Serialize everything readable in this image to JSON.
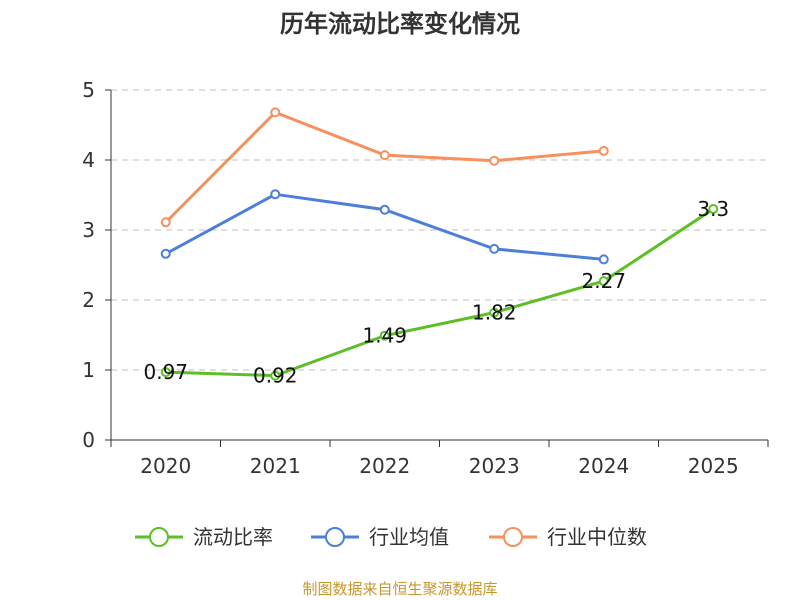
{
  "chart_data": {
    "type": "line",
    "title": "历年流动比率变化情况",
    "categories": [
      "2020",
      "2021",
      "2022",
      "2023",
      "2024",
      "2025"
    ],
    "y_ticks": [
      "0",
      "1",
      "2",
      "3",
      "4",
      "5"
    ],
    "ylim": [
      0,
      5
    ],
    "grid": true,
    "legend_position": "bottom",
    "series": [
      {
        "name": "流动比率",
        "color": "#5cbf26",
        "values": [
          0.97,
          0.92,
          1.49,
          1.82,
          2.27,
          3.3
        ],
        "labels": [
          "0.97",
          "0.92",
          "1.49",
          "1.82",
          "2.27",
          "3.3"
        ]
      },
      {
        "name": "行业均值",
        "color": "#4d7fd9",
        "values": [
          2.66,
          3.51,
          3.29,
          2.73,
          2.58,
          null
        ]
      },
      {
        "name": "行业中位数",
        "color": "#f7905c",
        "values": [
          3.11,
          4.68,
          4.07,
          3.99,
          4.13,
          null
        ]
      }
    ],
    "source": "制图数据来自恒生聚源数据库"
  }
}
